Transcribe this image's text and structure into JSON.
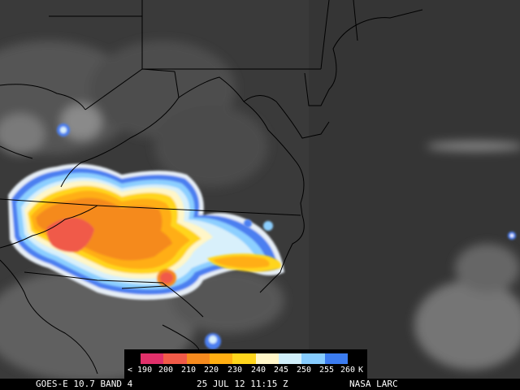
{
  "colors": {
    "background_cloudfree": "#3a3a3a",
    "border_lines": "#000000",
    "scale": [
      "#e0306a",
      "#f05a48",
      "#f58a1e",
      "#ffae12",
      "#ffd51c",
      "#fff6c8",
      "#cfeefa",
      "#86ccff",
      "#3b7cf0"
    ]
  },
  "colorbar": {
    "labels": [
      "< 190",
      "200",
      "210",
      "220",
      "230",
      "240",
      "245",
      "250",
      "255",
      "260",
      "K"
    ]
  },
  "caption": {
    "satellite": "GOES-E 10.7 BAND 4",
    "datetime": "25 JUL 12 11:15 Z",
    "credit": "NASA LARC"
  }
}
